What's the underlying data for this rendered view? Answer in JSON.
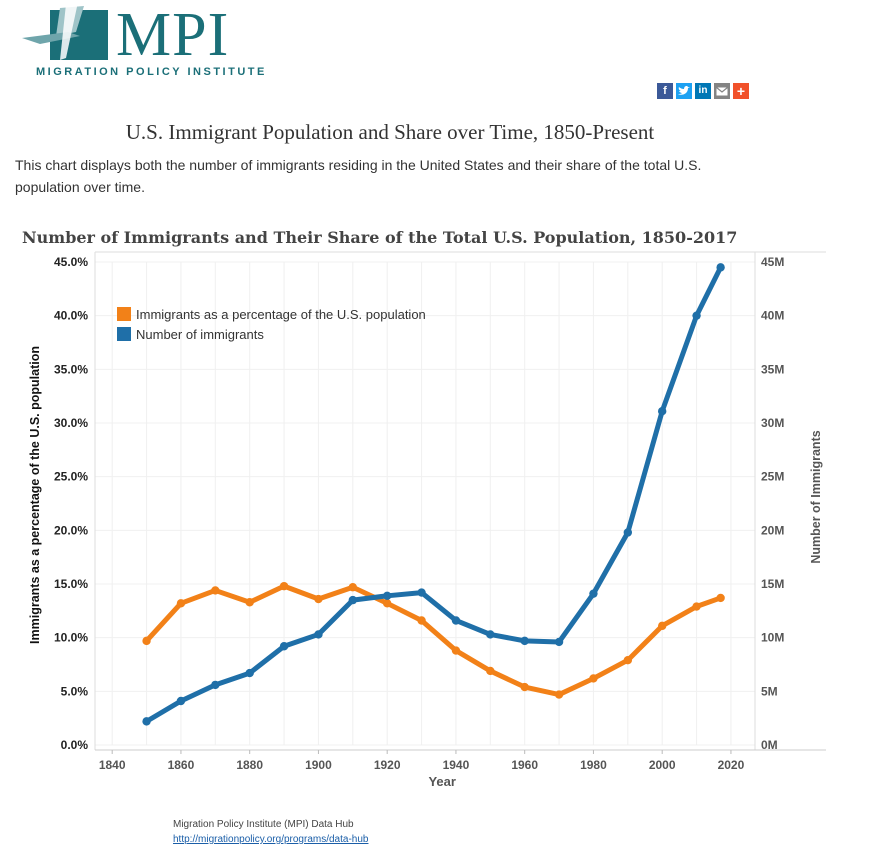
{
  "header": {
    "logo_text": "MPI",
    "logo_subtitle": "MIGRATION POLICY INSTITUTE",
    "share_icons": [
      "facebook-icon",
      "twitter-icon",
      "linkedin-icon",
      "email-icon",
      "plus-icon"
    ],
    "colors": {
      "brand": "#1b6f78"
    }
  },
  "page": {
    "title": "U.S. Immigrant Population and Share over Time, 1850-Present",
    "description": "This chart displays both the number of immigrants residing in the United States and their share of the total U.S. population over time."
  },
  "chart_data": {
    "type": "line",
    "title": "Number of Immigrants and Their Share of the Total U.S. Population, 1850-2017",
    "xlabel": "Year",
    "ylabel_left": "Immigrants as a percentage of the U.S. population",
    "ylabel_right": "Number of Immigrants",
    "xlim": [
      1835,
      2027
    ],
    "xticks": [
      1840,
      1860,
      1880,
      1900,
      1920,
      1940,
      1960,
      1980,
      2000,
      2020
    ],
    "ylim_left": [
      0,
      45
    ],
    "yticks_left": [
      "0.0%",
      "5.0%",
      "10.0%",
      "15.0%",
      "20.0%",
      "25.0%",
      "30.0%",
      "35.0%",
      "40.0%",
      "45.0%"
    ],
    "ylim_right": [
      0,
      45
    ],
    "yticks_right": [
      "0M",
      "5M",
      "10M",
      "15M",
      "20M",
      "25M",
      "30M",
      "35M",
      "40M",
      "45M"
    ],
    "legend_position": "top-left",
    "grid": true,
    "x": [
      1850,
      1860,
      1870,
      1880,
      1890,
      1900,
      1910,
      1920,
      1930,
      1940,
      1950,
      1960,
      1970,
      1980,
      1990,
      2000,
      2010,
      2017
    ],
    "series": [
      {
        "name": "Immigrants as a percentage of the U.S. population",
        "axis": "left",
        "color": "#f28118",
        "values": [
          9.7,
          13.2,
          14.4,
          13.3,
          14.8,
          13.6,
          14.7,
          13.2,
          11.6,
          8.8,
          6.9,
          5.4,
          4.7,
          6.2,
          7.9,
          11.1,
          12.9,
          13.7
        ]
      },
      {
        "name": "Number of immigrants",
        "axis": "right",
        "color": "#1f6fa8",
        "values": [
          2.2,
          4.1,
          5.6,
          6.7,
          9.2,
          10.3,
          13.5,
          13.9,
          14.2,
          11.6,
          10.3,
          9.7,
          9.6,
          14.1,
          19.8,
          31.1,
          40.0,
          44.5
        ]
      }
    ]
  },
  "footer": {
    "source": "Migration Policy Institute (MPI) Data Hub",
    "link": "http://migrationpolicy.org/programs/data-hub"
  }
}
